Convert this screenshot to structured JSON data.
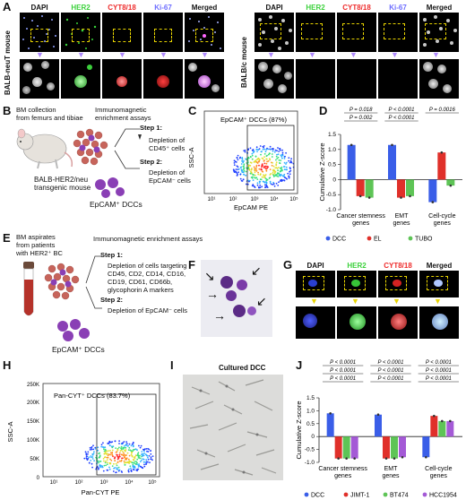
{
  "panel_letters": [
    "A",
    "B",
    "C",
    "D",
    "E",
    "F",
    "G",
    "H",
    "I",
    "J"
  ],
  "panelA": {
    "channels": [
      "DAPI",
      "HER2",
      "CYT8/18",
      "Ki-67",
      "Merged"
    ],
    "left_mouse": "BALB-neuT mouse",
    "right_mouse": "BALB/c mouse"
  },
  "panelB": {
    "bm": "BM collection\nfrom femurs and tibiae",
    "immuno": "Immunomagnetic\nenrichment assays",
    "step1": "Step 1:",
    "step1_desc": "Depletion of\nCD45⁺ cells",
    "step2": "Step 2:",
    "step2_desc": "Depletion of\nEpCAM⁻ cells",
    "mouse": "BALB-HER2/neu\ntransgenic mouse",
    "result": "EpCAM⁺ DCCs"
  },
  "panelC": {
    "gate_label": "EpCAM⁺ DCCs (87%)",
    "xlabel": "EpCAM PE",
    "ylabel": "SSC-A",
    "xticks": [
      "10¹",
      "10²",
      "10³",
      "10⁴",
      "10⁵"
    ]
  },
  "panelE": {
    "bm": "BM aspirates\nfrom patients\nwith HER2⁺ BC",
    "immuno": "Immunomagnetic enrichment assays",
    "step1": "Step 1:",
    "step1_desc": "Depletion of cells targeting\nCD45, CD2, CD14, CD16,\nCD19, CD61, CD66b,\nglycophorin A markers",
    "step2": "Step 2:",
    "step2_desc": "Depletion of EpCAM⁻ cells",
    "result": "EpCAM⁺ DCCs"
  },
  "panelG": {
    "channels": [
      "DAPI",
      "HER2",
      "CYT8/18",
      "Merged"
    ]
  },
  "panelH": {
    "gate_label": "Pan-CYT⁺ DCCs (83.7%)",
    "xlabel": "Pan-CYT PE",
    "ylabel": "SSC-A",
    "yticks": [
      "0",
      "50K",
      "100K",
      "150K",
      "200K",
      "250K"
    ],
    "xticks": [
      "10¹",
      "10²",
      "10³",
      "10⁴",
      "10⁵"
    ]
  },
  "panelI": {
    "title": "Cultured DCC"
  },
  "chart_data": [
    {
      "panel": "D",
      "type": "bar",
      "ylabel": "Cumulative Z-score",
      "ylim": [
        -1.0,
        1.5
      ],
      "yticks": [
        "-1.0",
        "-0.5",
        "0",
        "0.5",
        "1.0",
        "1.5"
      ],
      "categories": [
        "Cancer stemness genes",
        "EMT genes",
        "Cell-cycle genes"
      ],
      "series": [
        {
          "name": "DCC",
          "color": "#3a5ee8",
          "values": [
            1.15,
            1.15,
            -0.75
          ]
        },
        {
          "name": "EL",
          "color": "#e0302a",
          "values": [
            -0.55,
            -0.6,
            0.9
          ]
        },
        {
          "name": "TUBO",
          "color": "#5ec456",
          "values": [
            -0.6,
            -0.55,
            -0.2
          ]
        }
      ],
      "pvalues": [
        [
          "P = 0.018",
          "P = 0.002"
        ],
        [
          "P < 0.0001",
          "P < 0.0001"
        ],
        [
          "P = 0.0016"
        ]
      ]
    },
    {
      "panel": "J",
      "type": "bar",
      "ylabel": "Cumulative Z-score",
      "ylim": [
        -1.0,
        1.5
      ],
      "yticks": [
        "-1.0",
        "-0.5",
        "0",
        "0.5",
        "1.0",
        "1.5"
      ],
      "categories": [
        "Cancer stemness genes",
        "EMT genes",
        "Cell-cycle genes"
      ],
      "series": [
        {
          "name": "DCC",
          "color": "#3a5ee8",
          "values": [
            0.9,
            0.85,
            -0.8
          ]
        },
        {
          "name": "JIMT-1",
          "color": "#e0302a",
          "values": [
            -0.85,
            -0.85,
            0.8
          ]
        },
        {
          "name": "BT474",
          "color": "#5ec456",
          "values": [
            -0.85,
            -0.85,
            0.6
          ]
        },
        {
          "name": "HCC1954",
          "color": "#a45ad6",
          "values": [
            -0.85,
            -0.8,
            0.6
          ]
        }
      ],
      "pvalues": [
        [
          "P < 0.0001",
          "P < 0.0001",
          "P < 0.0001"
        ],
        [
          "P < 0.0001",
          "P < 0.0001",
          "P < 0.0001"
        ],
        [
          "P < 0.0001",
          "P < 0.0001",
          "P < 0.0001"
        ]
      ]
    }
  ]
}
